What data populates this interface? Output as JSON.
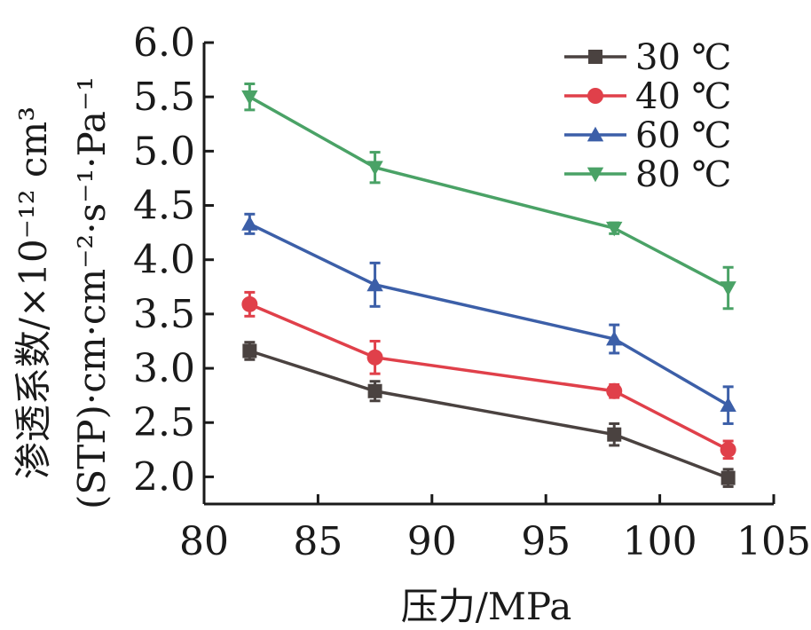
{
  "chart_data": {
    "type": "line",
    "xlabel": "压力/MPa",
    "ylabel_line1": "渗透系数/×10⁻¹² cm³",
    "ylabel_line2": "(STP)·cm·cm⁻²·s⁻¹·Pa⁻¹",
    "xlim": [
      80,
      105
    ],
    "ylim": [
      1.75,
      6.0
    ],
    "x_ticks": [
      "80",
      "85",
      "90",
      "95",
      "100",
      "105"
    ],
    "y_ticks": [
      "2.0",
      "2.5",
      "3.0",
      "3.5",
      "4.0",
      "4.5",
      "5.0",
      "5.5",
      "6.0"
    ],
    "grid": false,
    "legend_position": "top-right",
    "x": [
      82,
      87.5,
      98,
      103
    ],
    "series": [
      {
        "name": "30 ℃",
        "marker": "square",
        "color": "#4a4240",
        "values": [
          3.16,
          2.79,
          2.39,
          1.99
        ],
        "errors": [
          0.08,
          0.09,
          0.1,
          0.08
        ]
      },
      {
        "name": "40 ℃",
        "marker": "circle",
        "color": "#e0404a",
        "values": [
          3.59,
          3.1,
          2.79,
          2.25
        ],
        "errors": [
          0.11,
          0.15,
          0.06,
          0.08
        ]
      },
      {
        "name": "60 ℃",
        "marker": "triangle-up",
        "color": "#3c5fa8",
        "values": [
          4.33,
          3.77,
          3.27,
          2.66
        ],
        "errors": [
          0.09,
          0.2,
          0.13,
          0.17
        ]
      },
      {
        "name": "80 ℃",
        "marker": "triangle-down",
        "color": "#4aa266",
        "values": [
          5.5,
          4.85,
          4.29,
          3.74
        ],
        "errors": [
          0.12,
          0.14,
          0.05,
          0.19
        ]
      }
    ]
  }
}
